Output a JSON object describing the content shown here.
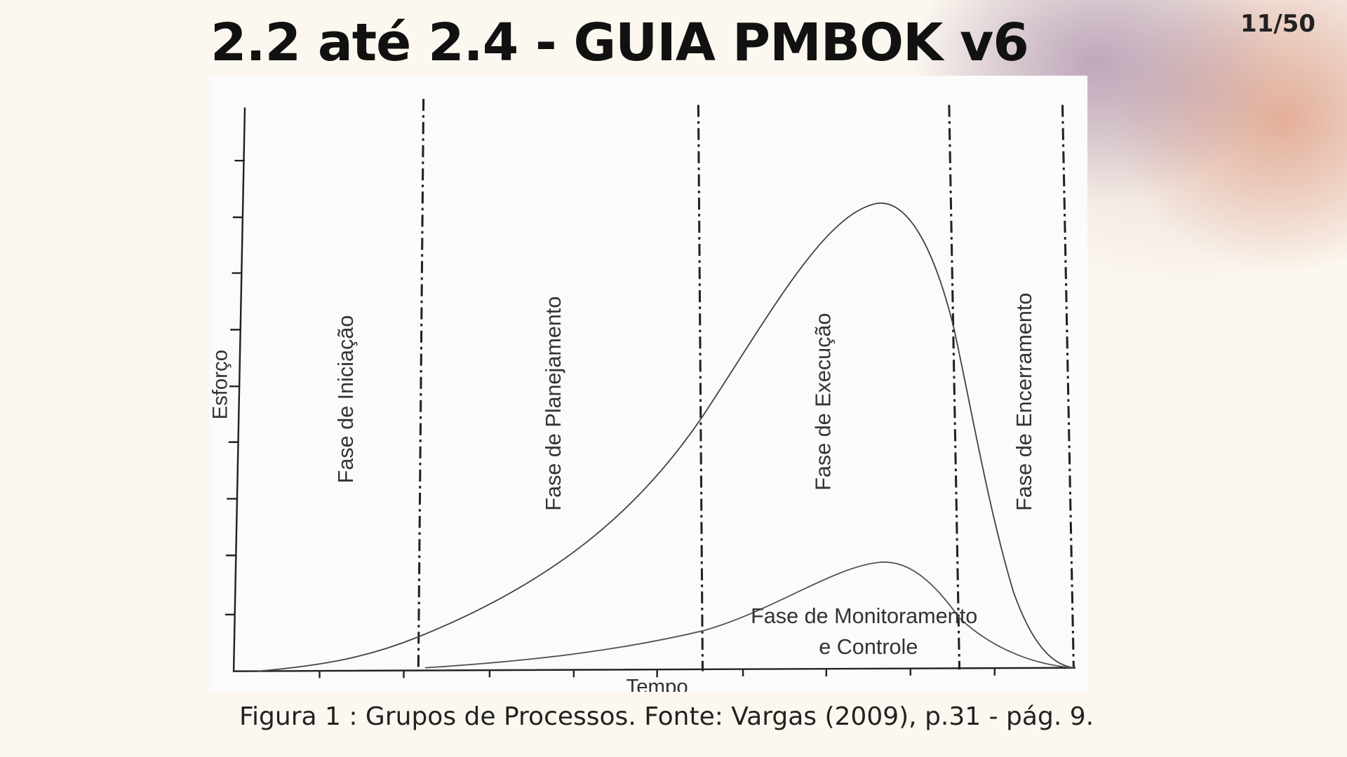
{
  "header": {
    "title": "2.2 até 2.4 - GUIA PMBOK v6",
    "page": "11/50"
  },
  "figure": {
    "y_axis_label": "Esforço",
    "x_axis_label": "Tempo",
    "phases": [
      "Fase de Iniciação",
      "Fase de Planejamento",
      "Fase de Execução",
      "Fase de Encerramento"
    ],
    "monitoring": [
      "Fase de Monitoramento",
      "e Controle"
    ]
  },
  "caption": "Figura 1 : Grupos de Processos. Fonte: Vargas (2009), p.31 - pág. 9."
}
